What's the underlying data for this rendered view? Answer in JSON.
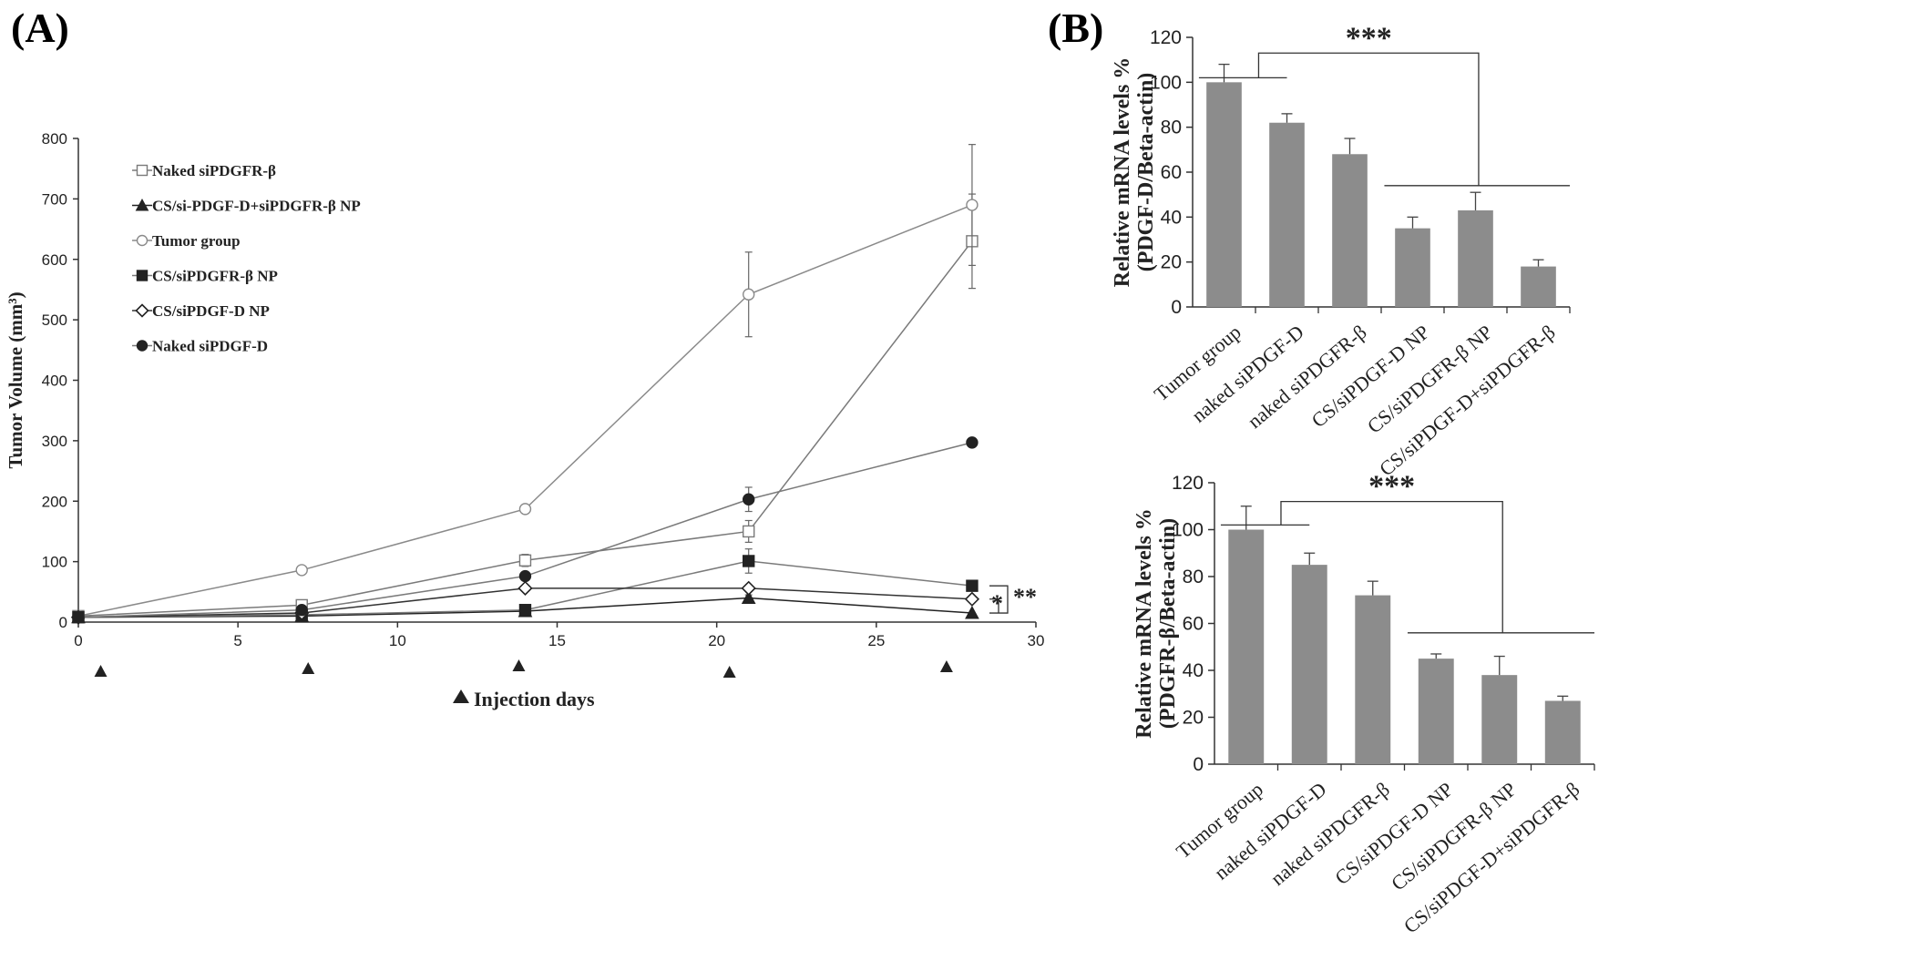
{
  "panels": {
    "a_label": "(A)",
    "b_label": "(B)"
  },
  "injection_legend": "Injection days",
  "chart_data": [
    {
      "type": "line",
      "id": "A",
      "ylabel": "Tumor Volume  (mm³)",
      "xlim": [
        0,
        30
      ],
      "ylim": [
        0,
        800
      ],
      "x_ticks": [
        0,
        5,
        10,
        15,
        20,
        25,
        30
      ],
      "y_ticks": [
        0,
        100,
        200,
        300,
        400,
        500,
        600,
        700,
        800
      ],
      "legend_position": "top-left",
      "injection_days": [
        0.7,
        7.2,
        13.8,
        20.4,
        27.2
      ],
      "series": [
        {
          "name": "Naked siPDGFR-β",
          "marker": "open-square",
          "color": "#7a7a7a",
          "x": [
            0,
            7,
            14,
            21,
            28
          ],
          "y": [
            10,
            28,
            102,
            150,
            630
          ],
          "err": [
            0,
            5,
            10,
            18,
            78
          ]
        },
        {
          "name": "CS/si-PDGF-D+siPDGFR-β NP",
          "marker": "filled-triangle",
          "color": "#222222",
          "x": [
            0,
            7,
            14,
            21,
            28
          ],
          "y": [
            8,
            10,
            18,
            40,
            15
          ],
          "err": [
            0,
            0,
            0,
            5,
            0
          ]
        },
        {
          "name": "Tumor group",
          "marker": "open-circle",
          "color": "#8a8a8a",
          "x": [
            0,
            7,
            14,
            21,
            28
          ],
          "y": [
            10,
            86,
            187,
            542,
            690
          ],
          "err": [
            0,
            5,
            6,
            70,
            100
          ]
        },
        {
          "name": "CS/siPDGFR-β NP",
          "marker": "filled-square",
          "color": "#7a7a7a",
          "x": [
            0,
            7,
            14,
            21,
            28
          ],
          "y": [
            8,
            12,
            20,
            101,
            60
          ],
          "err": [
            0,
            0,
            0,
            20,
            0
          ]
        },
        {
          "name": "CS/siPDGF-D NP",
          "marker": "open-diamond",
          "color": "#333333",
          "x": [
            0,
            7,
            14,
            21,
            28
          ],
          "y": [
            8,
            15,
            56,
            56,
            38
          ],
          "err": [
            0,
            0,
            0,
            0,
            0
          ]
        },
        {
          "name": "Naked siPDGF-D",
          "marker": "filled-circle",
          "color": "#7a7a7a",
          "x": [
            0,
            7,
            14,
            21,
            28
          ],
          "y": [
            8,
            20,
            76,
            203,
            297
          ],
          "err": [
            0,
            0,
            0,
            20,
            0
          ]
        }
      ],
      "annotations": [
        "*",
        "**"
      ]
    },
    {
      "type": "bar",
      "id": "B-top",
      "ylabel_line1": "Relative mRNA levels %",
      "ylabel_line2": "(PDGF-D/Beta-actin)",
      "categories": [
        "Tumor group",
        "naked siPDGF-D",
        "naked siPDGFR-β",
        "CS/siPDGF-D NP",
        "CS/siPDGFR-β NP",
        "CS/siPDGF-D+siPDGFR-β"
      ],
      "values": [
        100,
        82,
        68,
        35,
        43,
        18
      ],
      "errors": [
        8,
        4,
        7,
        5,
        8,
        3
      ],
      "ylim": [
        0,
        120
      ],
      "y_ticks": [
        0,
        20,
        40,
        60,
        80,
        100,
        120
      ],
      "significance": "***"
    },
    {
      "type": "bar",
      "id": "B-bottom",
      "ylabel_line1": "Relative mRNA levels %",
      "ylabel_line2": "(PDGFR-β/Beta-actin)",
      "categories": [
        "Tumor group",
        "naked siPDGF-D",
        "naked siPDGFR-β",
        "CS/siPDGF-D NP",
        "CS/siPDGFR-β NP",
        "CS/siPDGF-D+siPDGFR-β"
      ],
      "values": [
        100,
        85,
        72,
        45,
        38,
        27
      ],
      "errors": [
        10,
        5,
        6,
        2,
        8,
        2
      ],
      "ylim": [
        0,
        120
      ],
      "y_ticks": [
        0,
        20,
        40,
        60,
        80,
        100,
        120
      ],
      "significance": "***"
    }
  ]
}
